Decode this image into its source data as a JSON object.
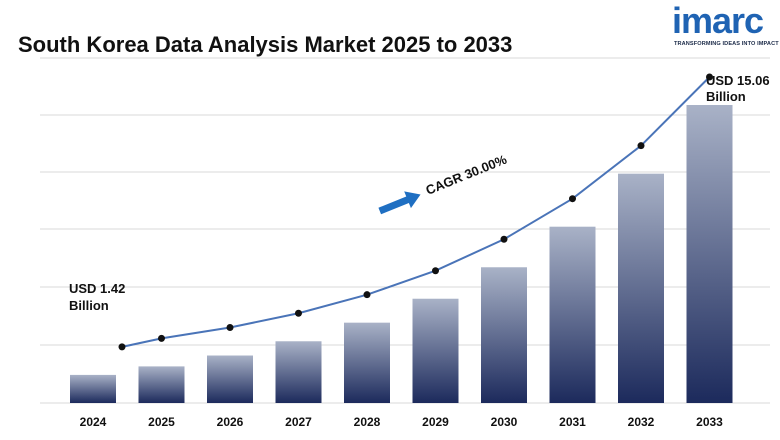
{
  "header": {
    "title": "South Korea Data Analysis Market 2025 to 2033"
  },
  "logo": {
    "word": "imarc",
    "tagline": "TRANSFORMING IDEAS INTO IMPACT",
    "color": "#1f63b3"
  },
  "chart_data": {
    "type": "bar",
    "title": "South Korea Data Analysis Market 2025 to 2033",
    "xlabel": "",
    "ylabel": "",
    "categories": [
      "2024",
      "2025",
      "2026",
      "2027",
      "2028",
      "2029",
      "2030",
      "2031",
      "2032",
      "2033"
    ],
    "values": [
      1.42,
      1.85,
      2.4,
      3.12,
      4.06,
      5.27,
      6.86,
      8.91,
      11.59,
      15.06
    ],
    "line_overlay": true,
    "grid": true,
    "annotations": {
      "start_line1": "USD 1.42",
      "start_line2": "Billion",
      "end_line1": "USD 15.06",
      "end_line2": "Billion",
      "cagr": "CAGR 30.00%"
    },
    "colors": {
      "bar_top": "#a9b2c7",
      "bar_bottom": "#1c2a5c",
      "line": "#4a74b8",
      "marker": "#111111",
      "arrow": "#1f6fc2",
      "grid": "#d9d9d9"
    }
  }
}
